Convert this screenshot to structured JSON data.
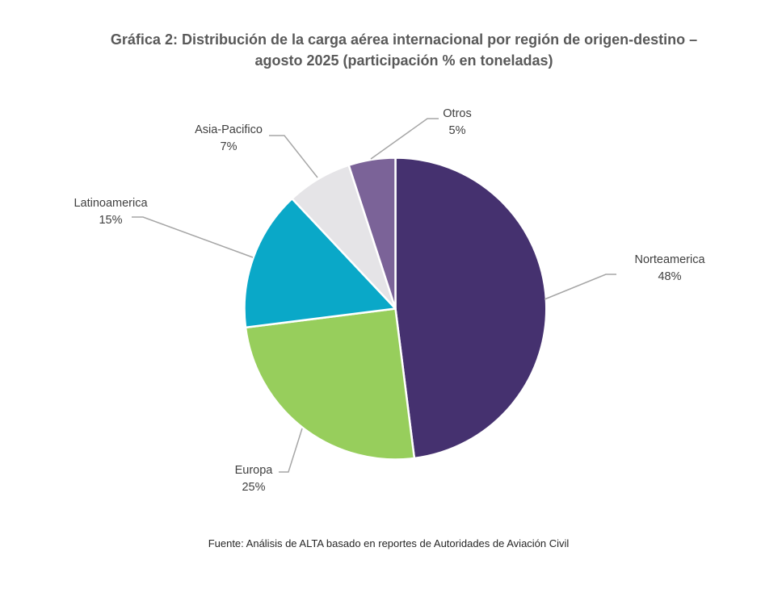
{
  "title": {
    "line1": "Gráfica 2: Distribución de la carga aérea internacional por región de origen-destino –",
    "line2": "agosto 2025 (participación % en toneladas)"
  },
  "source_note": "Fuente: Análisis de ALTA basado en reportes de Autoridades de Aviación Civil",
  "chart_data": {
    "type": "pie",
    "title": "Gráfica 2: Distribución de la carga aérea internacional por región de origen-destino – agosto 2025 (participación % en toneladas)",
    "legend_position": "none",
    "label_style": "outside-callout",
    "start_angle_deg": 0,
    "direction": "clockwise",
    "slices": [
      {
        "label": "Norteamerica",
        "value": 48,
        "display_value": "48%",
        "color": "#45316F"
      },
      {
        "label": "Europa",
        "value": 25,
        "display_value": "25%",
        "color": "#97CE5C"
      },
      {
        "label": "Latinoamerica",
        "value": 15,
        "display_value": "15%",
        "color": "#0AA8C8"
      },
      {
        "label": "Asia-Pacifico",
        "value": 7,
        "display_value": "7%",
        "color": "#E5E4E7"
      },
      {
        "label": "Otros",
        "value": 5,
        "display_value": "5%",
        "color": "#7B6398"
      }
    ],
    "colors": {
      "title_text": "#595959",
      "label_text": "#404040",
      "source_text": "#262626",
      "leader_line": "#A6A6A6",
      "slice_border": "#FFFFFF",
      "background": "#FFFFFF"
    }
  }
}
